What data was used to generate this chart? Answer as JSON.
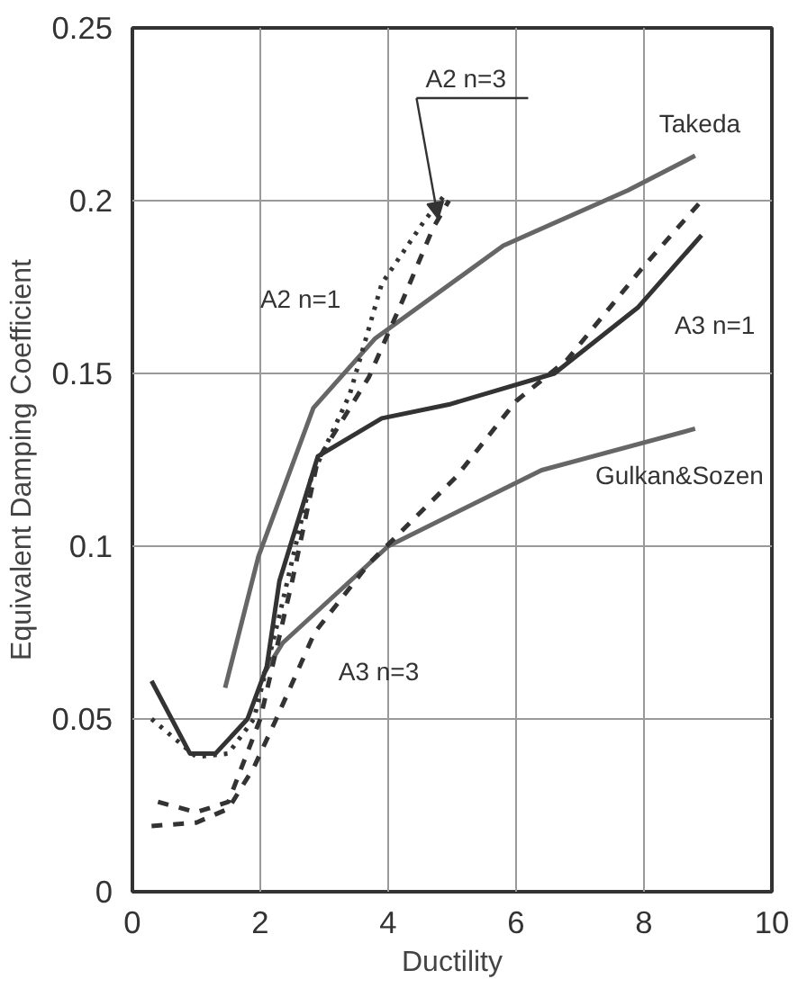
{
  "chart_data": {
    "type": "line",
    "xlabel": "Ductility",
    "ylabel": "Equivalent Damping Coefficient",
    "xlim": [
      0,
      10
    ],
    "ylim": [
      0,
      0.25
    ],
    "xticks": [
      0,
      2,
      4,
      6,
      8,
      10
    ],
    "yticks": [
      0,
      0.05,
      0.1,
      0.15,
      0.2,
      0.25
    ],
    "grid": true,
    "marker": "none",
    "series": [
      {
        "name": "Takeda",
        "color": "#666666",
        "line_style": "solid",
        "x": [
          1.45,
          1.97,
          2.83,
          3.79,
          5.8,
          7.75,
          8.8
        ],
        "values": [
          0.059,
          0.097,
          0.14,
          0.16,
          0.187,
          0.203,
          0.213
        ]
      },
      {
        "name": "Gulkan&Sozen",
        "color": "#666666",
        "line_style": "solid",
        "x": [
          2.05,
          2.35,
          4.0,
          6.4,
          8.8
        ],
        "values": [
          0.063,
          0.072,
          0.1,
          0.122,
          0.134
        ]
      },
      {
        "name": "A3 n=1",
        "color": "#333333",
        "line_style": "solid",
        "x": [
          0.3,
          0.9,
          1.3,
          1.8,
          2.1,
          2.3,
          2.9,
          3.9,
          4.95,
          6.6,
          7.9,
          8.9
        ],
        "values": [
          0.061,
          0.04,
          0.04,
          0.05,
          0.065,
          0.09,
          0.126,
          0.137,
          0.141,
          0.15,
          0.169,
          0.19
        ]
      },
      {
        "name": "A3 n=3",
        "color": "#333333",
        "line_style": "dashed",
        "x": [
          0.3,
          1.0,
          1.5,
          1.9,
          2.25,
          2.85,
          3.7,
          5.06,
          6.0,
          6.8,
          7.95,
          8.9
        ],
        "values": [
          0.019,
          0.02,
          0.024,
          0.036,
          0.05,
          0.075,
          0.095,
          0.12,
          0.142,
          0.154,
          0.18,
          0.2
        ]
      },
      {
        "name": "A2 n=1",
        "color": "#333333",
        "line_style": "dotted",
        "x": [
          0.3,
          1.0,
          1.5,
          1.9,
          2.3,
          2.8,
          3.4,
          3.9,
          4.56,
          4.9
        ],
        "values": [
          0.05,
          0.039,
          0.04,
          0.05,
          0.08,
          0.12,
          0.144,
          0.176,
          0.194,
          0.202
        ]
      },
      {
        "name": "A2 n=3",
        "color": "#333333",
        "line_style": "dashed",
        "x": [
          0.4,
          1.0,
          1.5,
          2.0,
          2.5,
          2.9,
          3.7,
          4.2,
          4.7,
          4.95
        ],
        "values": [
          0.026,
          0.023,
          0.026,
          0.05,
          0.09,
          0.125,
          0.149,
          0.17,
          0.192,
          0.2
        ]
      }
    ]
  }
}
